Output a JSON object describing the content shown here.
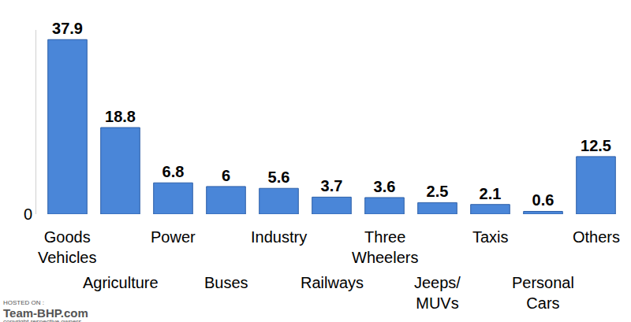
{
  "chart_data": {
    "type": "bar",
    "categories": [
      "Goods Vehicles",
      "Agriculture",
      "Power",
      "Buses",
      "Industry",
      "Railways",
      "Three Wheelers",
      "Jeeps/ MUVs",
      "Taxis",
      "Personal Cars",
      "Others"
    ],
    "values": [
      37.9,
      18.8,
      6.8,
      6,
      5.6,
      3.7,
      3.6,
      2.5,
      2.1,
      0.6,
      12.5
    ],
    "color": "#4a86d8",
    "ylim": [
      0,
      40
    ],
    "yticks": [
      0
    ],
    "grid": false,
    "data_labels": true,
    "annotations": [
      "HOSTED ON :",
      "Team-BHP.com",
      "copyright respective owners"
    ]
  }
}
